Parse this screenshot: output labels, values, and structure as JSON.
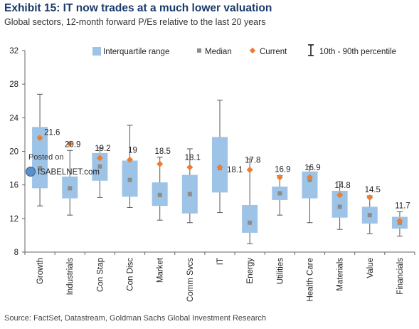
{
  "header": {
    "title": "Exhibit 15: IT now trades at a much lower valuation",
    "subtitle": "Global sectors, 12-month forward P/Es relative to the last 20 years"
  },
  "footer": {
    "source": "Source: FactSet, Datastream, Goldman Sachs Global Investment Research"
  },
  "watermark": {
    "line1": "Posted on",
    "line2": "ISABELNET.com"
  },
  "colors": {
    "box": "#9dc3e6",
    "whisker": "#555555",
    "median": "#8c8c8c",
    "current": "#ed7d31",
    "title": "#1a3a6b"
  },
  "chart_data": {
    "type": "box",
    "title": "Exhibit 15: IT now trades at a much lower valuation",
    "subtitle": "Global sectors, 12-month forward P/Es relative to the last 20 years",
    "ylim": [
      8,
      32
    ],
    "yticks": [
      8,
      12,
      16,
      20,
      24,
      28,
      32
    ],
    "grid": false,
    "legend_position": "top",
    "legend": [
      "Interquartile range",
      "Median",
      "Current",
      "10th - 90th percentile"
    ],
    "categories": [
      "Growth",
      "Industrials",
      "Con Stap",
      "Con Disc",
      "Market",
      "Comm Svcs",
      "IT",
      "Energy",
      "Utilities",
      "Health Care",
      "Materials",
      "Value",
      "Financials"
    ],
    "p10": [
      13.5,
      12.4,
      14.5,
      13.3,
      11.8,
      11.5,
      12.7,
      9.0,
      12.4,
      11.5,
      10.7,
      10.2,
      9.9
    ],
    "q1": [
      15.6,
      14.4,
      16.5,
      14.6,
      13.5,
      12.6,
      15.1,
      10.3,
      14.2,
      14.4,
      12.1,
      11.4,
      10.8
    ],
    "median": [
      18.0,
      15.6,
      18.2,
      16.6,
      14.8,
      14.9,
      18.0,
      11.5,
      15.0,
      16.6,
      13.4,
      12.4,
      11.5
    ],
    "q3": [
      22.9,
      17.0,
      19.8,
      18.9,
      16.3,
      17.2,
      21.7,
      13.6,
      15.8,
      17.6,
      15.3,
      13.4,
      12.2
    ],
    "p90": [
      26.8,
      20.1,
      20.4,
      23.1,
      19.3,
      20.3,
      26.1,
      19.1,
      17.1,
      18.2,
      16.4,
      14.7,
      12.8
    ],
    "current": [
      21.6,
      20.9,
      19.2,
      19.0,
      18.5,
      18.1,
      18.1,
      17.8,
      16.9,
      16.9,
      14.8,
      14.5,
      11.7
    ]
  }
}
